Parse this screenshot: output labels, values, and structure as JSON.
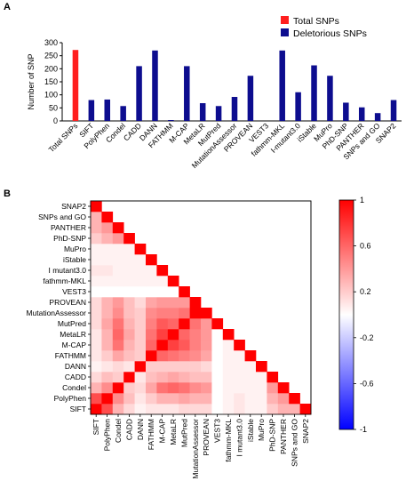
{
  "panels": {
    "a": "A",
    "b": "B"
  },
  "chart_data": [
    {
      "type": "bar",
      "ylabel": "Number of SNP",
      "ylim": [
        0,
        300
      ],
      "yticks": [
        0,
        50,
        100,
        150,
        200,
        250,
        300
      ],
      "categories": [
        "Total SNPs",
        "SIFT",
        "PolyPhen",
        "Condel",
        "CADD",
        "DANN",
        "FATHMM",
        "M-CAP",
        "MetaLR",
        "MutPred",
        "MutationAssessor",
        "PROVEAN",
        "VEST3",
        "fathmm-MKL",
        "I-mutant3.0",
        "iStable",
        "MuPro",
        "PhD-SNP",
        "PANTHER",
        "SNPs and GO",
        "SNAP2"
      ],
      "series": [
        {
          "name": "Total SNPs",
          "color": "#ff1f1f",
          "values": [
            272,
            null,
            null,
            null,
            null,
            null,
            null,
            null,
            null,
            null,
            null,
            null,
            null,
            null,
            null,
            null,
            null,
            null,
            null,
            null,
            null
          ]
        },
        {
          "name": "Deletorious SNPs",
          "color": "#0d0d8f",
          "values": [
            null,
            80,
            82,
            57,
            210,
            270,
            3,
            210,
            68,
            57,
            92,
            173,
            0,
            270,
            110,
            213,
            173,
            70,
            52,
            30,
            80
          ]
        }
      ],
      "legend": "top-right"
    },
    {
      "type": "heatmap",
      "labels": [
        "SIFT",
        "PolyPhen",
        "Condel",
        "CADD",
        "DANN",
        "FATHMM",
        "M-CAP",
        "MetaLR",
        "MutPred",
        "MutationAssessor",
        "PROVEAN",
        "VEST3",
        "fathmm-MKL",
        "I mutant3.0",
        "iStable",
        "MuPro",
        "PhD-SNP",
        "PANTHER",
        "SNPs and GO",
        "SNAP2"
      ],
      "colorbar": {
        "range": [
          -1,
          1
        ],
        "ticks": [
          "1",
          "0.6",
          "0.2",
          "-0.2",
          "-0.6",
          "-1"
        ]
      },
      "lower_triangle": [
        [
          1
        ],
        [
          0.7,
          1
        ],
        [
          0.3,
          0.45,
          1
        ],
        [
          0.15,
          0.25,
          0.2,
          1
        ],
        [
          0.05,
          0.1,
          0.15,
          0.1,
          1
        ],
        [
          0.1,
          0.2,
          0.35,
          0.25,
          0.2,
          1
        ],
        [
          0.1,
          0.3,
          0.55,
          0.3,
          0.2,
          0.6,
          1
        ],
        [
          0.1,
          0.3,
          0.6,
          0.35,
          0.2,
          0.55,
          0.75,
          1
        ],
        [
          0.15,
          0.35,
          0.55,
          0.3,
          0.2,
          0.5,
          0.65,
          0.6,
          1
        ],
        [
          0.15,
          0.3,
          0.45,
          0.25,
          0.2,
          0.45,
          0.5,
          0.5,
          0.55,
          1
        ],
        [
          0.15,
          0.3,
          0.4,
          0.25,
          0.15,
          0.35,
          0.4,
          0.4,
          0.4,
          0.45,
          1
        ],
        [
          0,
          0,
          0,
          0,
          0,
          0,
          0,
          0,
          0,
          0,
          0,
          1
        ],
        [
          0.05,
          0.05,
          0.05,
          0.05,
          0.05,
          0.05,
          0.05,
          0.05,
          0.05,
          0.05,
          0.05,
          0,
          1
        ],
        [
          0.1,
          0.1,
          0.05,
          0.05,
          0.05,
          0.05,
          0.05,
          0,
          -0.05,
          -0.05,
          0,
          0,
          0.05,
          1
        ],
        [
          0.05,
          0.05,
          0.05,
          0.05,
          0.05,
          0,
          0,
          -0.05,
          -0.1,
          -0.1,
          0,
          0,
          0.05,
          0.5,
          1
        ],
        [
          0.05,
          0.05,
          0.05,
          0.05,
          0.05,
          0,
          0,
          0,
          0,
          0,
          0,
          0,
          0.05,
          0.2,
          0.25,
          1
        ],
        [
          0.2,
          0.3,
          0.4,
          0.35,
          0.25,
          0.4,
          0.5,
          0.5,
          0.5,
          0.45,
          0.4,
          0,
          0.1,
          0,
          0,
          0.1,
          1
        ],
        [
          0.3,
          0.4,
          0.5,
          0.45,
          0.3,
          0.45,
          0.55,
          0.55,
          0.5,
          0.45,
          0.45,
          0,
          0.1,
          0,
          -0.05,
          0.1,
          0.6,
          1
        ],
        [
          0.3,
          0.4,
          0.55,
          0.45,
          0.3,
          0.5,
          0.6,
          0.6,
          0.55,
          0.5,
          0.5,
          0,
          0.1,
          0,
          -0.05,
          0.1,
          0.65,
          0.7,
          1
        ],
        [
          0.25,
          0.35,
          0.5,
          0.4,
          0.3,
          0.45,
          0.55,
          0.55,
          0.5,
          0.45,
          0.45,
          0,
          0.1,
          0,
          -0.05,
          0.1,
          0.6,
          0.65,
          0.75,
          1
        ]
      ]
    }
  ]
}
